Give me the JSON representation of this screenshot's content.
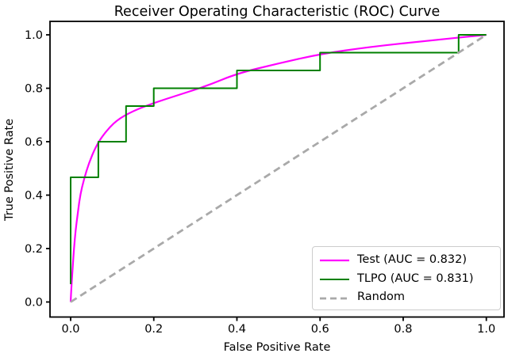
{
  "chart_data": {
    "type": "line",
    "title": "Receiver Operating Characteristic (ROC) Curve",
    "xlabel": "False Positive Rate",
    "ylabel": "True Positive Rate",
    "x_ticks": [
      0.0,
      0.2,
      0.4,
      0.6,
      0.8,
      1.0
    ],
    "x_tick_labels": [
      "0.0",
      "0.2",
      "0.4",
      "0.6",
      "0.8",
      "1.0"
    ],
    "y_ticks": [
      0.0,
      0.2,
      0.4,
      0.6,
      0.8,
      1.0
    ],
    "y_tick_labels": [
      "0.0",
      "0.2",
      "0.4",
      "0.6",
      "0.8",
      "1.0"
    ],
    "xlim": [
      -0.05,
      1.05
    ],
    "ylim": [
      -0.055,
      1.05
    ],
    "grid": false,
    "legend_position": "lower right",
    "axes_color": "#000000",
    "series": [
      {
        "key": "test",
        "name": "Test (AUC = 0.832)",
        "auc": 0.832,
        "color": "#ff00ff",
        "line_style": "solid",
        "line_width": 2.2,
        "curve": "smooth",
        "x": [
          0,
          0.002,
          0.005,
          0.008,
          0.012,
          0.017,
          0.023,
          0.032,
          0.044,
          0.06,
          0.08,
          0.11,
          0.15,
          0.2,
          0.26,
          0.33,
          0.4,
          0.5,
          0.6,
          0.72,
          0.86,
          1.0
        ],
        "y": [
          0,
          0.06,
          0.13,
          0.2,
          0.27,
          0.33,
          0.4,
          0.46,
          0.52,
          0.58,
          0.63,
          0.68,
          0.715,
          0.745,
          0.775,
          0.81,
          0.855,
          0.893,
          0.928,
          0.955,
          0.978,
          1.0
        ]
      },
      {
        "key": "tlpo",
        "name": "TLPO (AUC = 0.831)",
        "auc": 0.831,
        "color": "#008000",
        "line_style": "solid",
        "line_width": 2.0,
        "curve": "line",
        "x": [
          0.0,
          0.0,
          0.0667,
          0.0667,
          0.1333,
          0.1333,
          0.2,
          0.2,
          0.4,
          0.4,
          0.6,
          0.6,
          0.9333,
          0.9333,
          1.0
        ],
        "y": [
          0.0667,
          0.4667,
          0.4667,
          0.6,
          0.6,
          0.7333,
          0.7333,
          0.8,
          0.8,
          0.8667,
          0.8667,
          0.9333,
          0.9333,
          1.0,
          1.0
        ]
      },
      {
        "key": "random",
        "name": "Random",
        "color": "#a9a9a9",
        "line_style": "dashed",
        "line_width": 2.8,
        "curve": "line",
        "x": [
          0.0,
          1.0
        ],
        "y": [
          0.0,
          1.0
        ]
      }
    ]
  }
}
